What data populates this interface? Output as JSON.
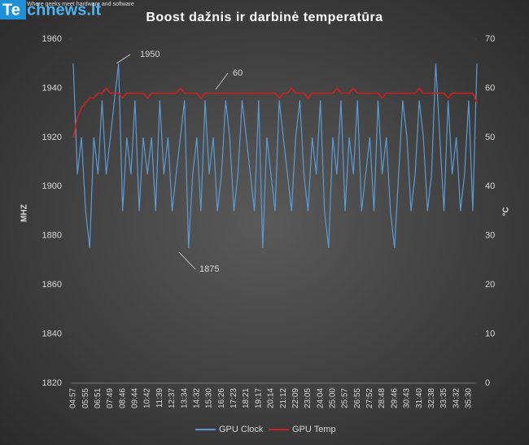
{
  "branding": {
    "logo_mark": "Te",
    "logo_rest": "chnews.lt",
    "tagline": "Where geeks meet hardware and software"
  },
  "chart_data": {
    "type": "line",
    "title": "Boost dažnis ir darbinė temperatūra",
    "y_label": "MHZ",
    "y2_label": "°C",
    "categories": [
      "04:57",
      null,
      null,
      "05:55",
      null,
      null,
      "06:51",
      null,
      null,
      "07:49",
      null,
      null,
      "08:46",
      null,
      null,
      "09:44",
      null,
      null,
      "10:42",
      null,
      null,
      "11:39",
      null,
      null,
      "12:37",
      null,
      null,
      "13:34",
      null,
      null,
      "14:32",
      null,
      null,
      "15:30",
      null,
      null,
      "16:26",
      null,
      null,
      "17:23",
      null,
      null,
      "18:21",
      null,
      null,
      "19:17",
      null,
      null,
      "20:14",
      null,
      null,
      "21:12",
      null,
      null,
      "22:09",
      null,
      null,
      "23:05",
      null,
      null,
      "24:04",
      null,
      null,
      "25:00",
      null,
      null,
      "25:57",
      null,
      null,
      "26:55",
      null,
      null,
      "27:52",
      null,
      null,
      "28:48",
      null,
      null,
      "29:46",
      null,
      null,
      "30:43",
      null,
      null,
      "31:40",
      null,
      null,
      "32:38",
      null,
      null,
      "33:35",
      null,
      null,
      "34:32",
      null,
      null,
      "35:30",
      null,
      null
    ],
    "series": [
      {
        "name": "GPU Clock",
        "color": "#5b9bd5",
        "values": [
          1950,
          1905,
          1920,
          1890,
          1875,
          1920,
          1905,
          1935,
          1905,
          1920,
          1935,
          1950,
          1890,
          1920,
          1905,
          1935,
          1890,
          1920,
          1905,
          1920,
          1890,
          1935,
          1905,
          1920,
          1890,
          1905,
          1920,
          1935,
          1875,
          1905,
          1920,
          1890,
          1935,
          1905,
          1920,
          1890,
          1905,
          1935,
          1920,
          1890,
          1905,
          1935,
          1920,
          1905,
          1890,
          1935,
          1875,
          1920,
          1905,
          1890,
          1935,
          1920,
          1905,
          1890,
          1920,
          1935,
          1905,
          1890,
          1920,
          1905,
          1935,
          1890,
          1875,
          1920,
          1905,
          1935,
          1890,
          1920,
          1905,
          1935,
          1890,
          1905,
          1920,
          1890,
          1935,
          1905,
          1920,
          1890,
          1875,
          1905,
          1935,
          1920,
          1890,
          1905,
          1935,
          1920,
          1890,
          1905,
          1950,
          1920,
          1890,
          1935,
          1905,
          1920,
          1890,
          1905,
          1935,
          1890,
          1950
        ]
      },
      {
        "name": "GPU Temp",
        "color": "#d11f1f",
        "axis": "y2",
        "values": [
          50,
          54,
          56,
          57,
          58,
          58,
          59,
          59,
          60,
          59,
          59,
          59,
          58,
          59,
          59,
          59,
          59,
          59,
          58,
          59,
          59,
          59,
          59,
          59,
          59,
          59,
          60,
          59,
          59,
          59,
          59,
          58,
          59,
          59,
          59,
          59,
          59,
          59,
          59,
          59,
          59,
          59,
          59,
          59,
          59,
          59,
          59,
          59,
          59,
          59,
          58,
          59,
          59,
          60,
          59,
          59,
          59,
          58,
          59,
          59,
          59,
          59,
          59,
          59,
          60,
          59,
          59,
          59,
          60,
          59,
          59,
          59,
          59,
          59,
          59,
          58,
          59,
          59,
          59,
          59,
          59,
          59,
          59,
          59,
          60,
          59,
          59,
          59,
          59,
          59,
          59,
          58,
          59,
          59,
          59,
          59,
          59,
          59,
          57
        ]
      }
    ],
    "ylim": [
      1820,
      1960
    ],
    "yticks": [
      1820,
      1840,
      1860,
      1880,
      1900,
      1920,
      1940,
      1960
    ],
    "y2lim": [
      0,
      70
    ],
    "y2ticks": [
      0,
      10,
      20,
      30,
      40,
      50,
      60,
      70
    ],
    "annotations": [
      "1950",
      "60",
      "1875"
    ],
    "legend": "bottom"
  }
}
